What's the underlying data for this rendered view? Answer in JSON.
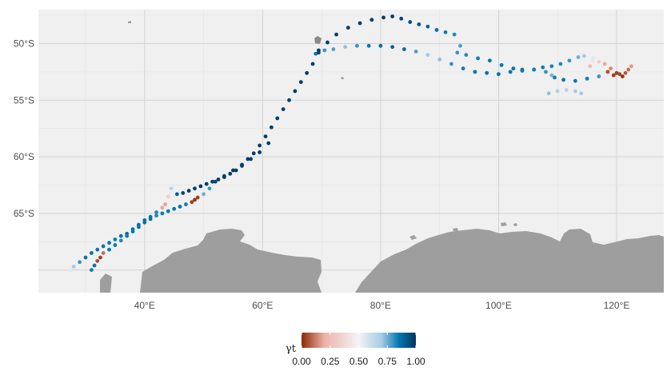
{
  "chart_data": {
    "type": "scatter",
    "title": "",
    "xlabel": "",
    "ylabel": "",
    "xlim": [
      22,
      128
    ],
    "ylim": [
      -72,
      -47
    ],
    "x_ticks": [
      "40°E",
      "60°E",
      "80°E",
      "100°E",
      "120°E"
    ],
    "y_ticks": [
      "50°S",
      "55°S",
      "60°S",
      "65°S"
    ],
    "x_tick_values": [
      40,
      60,
      80,
      100,
      120
    ],
    "y_tick_values": [
      -50,
      -55,
      -60,
      -65
    ],
    "grid": true,
    "legend_position": "bottom",
    "legend": {
      "title": "γt",
      "labels": [
        "0.00",
        "0.25",
        "0.50",
        "0.75",
        "1.00"
      ],
      "values": [
        0,
        0.25,
        0.5,
        0.75,
        1.0
      ],
      "colors": [
        "#8c2a04",
        "#ecb3a8",
        "#f4f4f4",
        "#a6cbe4",
        "#0079b1",
        "#00345c"
      ]
    },
    "colors": {
      "panel_background": "#f0f0f0",
      "grid": "#d9d9d9",
      "land": "#9e9e9e"
    },
    "series": [
      {
        "lon": [
          69.5,
          71,
          72.5,
          74.5,
          76.5,
          78.5,
          80.5,
          82,
          83.5,
          85,
          86.5,
          88,
          89.5,
          91,
          92.5,
          93.5,
          93,
          94.5,
          96.5,
          98.5,
          100.5,
          102.5,
          104,
          106,
          107.5,
          109,
          110.5,
          112,
          113.5,
          114.5
        ],
        "lat": [
          -50.6,
          -49.9,
          -49.2,
          -48.6,
          -48.2,
          -47.9,
          -47.7,
          -47.6,
          -47.8,
          -48.1,
          -48.3,
          -48.5,
          -48.8,
          -49.0,
          -49.2,
          -50.2,
          -50.8,
          -51.0,
          -51.3,
          -51.5,
          -51.9,
          -52.2,
          -52.3,
          -52.3,
          -52.1,
          -52.0,
          -51.8,
          -51.5,
          -51.2,
          -51.1
        ],
        "gamma": [
          0.98,
          0.98,
          0.98,
          0.98,
          0.98,
          0.98,
          0.98,
          0.98,
          0.96,
          0.94,
          0.93,
          0.9,
          0.88,
          0.84,
          0.82,
          0.78,
          0.8,
          0.82,
          0.84,
          0.86,
          0.85,
          0.86,
          0.86,
          0.85,
          0.84,
          0.83,
          0.82,
          0.8,
          0.75,
          0.7
        ]
      },
      {
        "lon": [
          69,
          70.5,
          72,
          74,
          76,
          78,
          80,
          82,
          84,
          86,
          88,
          90,
          92,
          94,
          96,
          98,
          100,
          102,
          104,
          106,
          108,
          109,
          109.5,
          111,
          113,
          115,
          117
        ],
        "lat": [
          -50.9,
          -50.6,
          -50.5,
          -50.3,
          -50.2,
          -50.2,
          -50.2,
          -50.3,
          -50.5,
          -50.7,
          -51.0,
          -51.4,
          -51.8,
          -52.2,
          -52.5,
          -52.6,
          -52.7,
          -52.5,
          -52.4,
          -52.3,
          -52.5,
          -52.8,
          -53.0,
          -53.2,
          -53.3,
          -53.1,
          -52.9
        ],
        "gamma": [
          0.85,
          0.8,
          0.78,
          0.72,
          0.8,
          0.85,
          0.88,
          0.9,
          0.88,
          0.78,
          0.7,
          0.72,
          0.8,
          0.84,
          0.86,
          0.86,
          0.87,
          0.86,
          0.85,
          0.84,
          0.8,
          0.74,
          0.84,
          0.86,
          0.85,
          0.84,
          0.8
        ]
      },
      {
        "lon": [
          108.5,
          110,
          111.5,
          113,
          114,
          116,
          118,
          119,
          120,
          121,
          122,
          118.5,
          119.5,
          120.5,
          121.5,
          122.5,
          116,
          117,
          115.5
        ],
        "lat": [
          -54.4,
          -54.2,
          -54.1,
          -54.2,
          -54.4,
          -51.5,
          -51.8,
          -52.2,
          -52.6,
          -52.9,
          -52.3,
          -52.5,
          -52.8,
          -52.7,
          -52.6,
          -52.0,
          -51.3,
          -51.6,
          -52.0
        ],
        "gamma": [
          0.72,
          0.68,
          0.66,
          0.7,
          0.7,
          0.45,
          0.3,
          0.2,
          0.05,
          0.02,
          0.15,
          0.08,
          0.04,
          0.06,
          0.1,
          0.25,
          0.55,
          0.4,
          0.35
        ]
      },
      {
        "lon": [
          69.5,
          68.5,
          67.5,
          66.5,
          65.5,
          64.5,
          63.5,
          62.5,
          61.5,
          60.5,
          59.5,
          58.5,
          57.5,
          56.5,
          55.5,
          54.5,
          53.5,
          52.5,
          51.5,
          50.5,
          49.5,
          48.5,
          47.5,
          46.5,
          45.5,
          44.5,
          44,
          43.5,
          43,
          42,
          41,
          40,
          39,
          38,
          37,
          36,
          35,
          34,
          33,
          32,
          31,
          30,
          29,
          28,
          27.5
        ],
        "lat": [
          -50.8,
          -51.8,
          -52.6,
          -53.4,
          -54.2,
          -55.0,
          -55.8,
          -56.6,
          -57.4,
          -58.2,
          -59.0,
          -59.7,
          -60.2,
          -60.8,
          -61.2,
          -61.5,
          -61.8,
          -62.0,
          -62.2,
          -62.4,
          -62.6,
          -62.8,
          -63.0,
          -63.2,
          -63.3,
          -62.8,
          -63.5,
          -64.2,
          -64.5,
          -64.9,
          -65.3,
          -65.6,
          -66.0,
          -66.4,
          -66.8,
          -67.0,
          -67.3,
          -67.6,
          -67.9,
          -68.2,
          -68.5,
          -68.9,
          -69.3,
          -69.7,
          -70.0
        ],
        "gamma": [
          0.98,
          0.98,
          0.98,
          0.98,
          0.98,
          0.98,
          0.98,
          0.98,
          0.98,
          0.98,
          0.98,
          0.98,
          0.98,
          0.98,
          0.98,
          0.98,
          0.98,
          0.98,
          0.98,
          0.98,
          0.98,
          0.98,
          0.98,
          0.96,
          0.9,
          0.65,
          0.4,
          0.28,
          0.3,
          0.82,
          0.85,
          0.86,
          0.86,
          0.86,
          0.88,
          0.86,
          0.84,
          0.85,
          0.86,
          0.86,
          0.86,
          0.86,
          0.8,
          0.7,
          0.55
        ]
      },
      {
        "lon": [
          61,
          59.5,
          58,
          56.5,
          55,
          53.5,
          52,
          51,
          50,
          49,
          48.5,
          48,
          47,
          46,
          45,
          44,
          43,
          42,
          41,
          40,
          39,
          38,
          37,
          36,
          35,
          34,
          33,
          32.5,
          32,
          31.5,
          31
        ],
        "lat": [
          -58.8,
          -59.6,
          -60.2,
          -60.7,
          -61.2,
          -61.7,
          -62.2,
          -62.8,
          -63.3,
          -63.6,
          -63.8,
          -64.0,
          -64.2,
          -64.4,
          -64.6,
          -64.8,
          -65.0,
          -65.2,
          -65.5,
          -65.8,
          -66.2,
          -66.6,
          -67.0,
          -67.4,
          -67.8,
          -68.2,
          -68.5,
          -68.9,
          -69.2,
          -69.6,
          -70.0
        ],
        "gamma": [
          0.98,
          0.98,
          0.98,
          0.98,
          0.98,
          0.98,
          0.96,
          0.8,
          0.75,
          0.05,
          0.02,
          0.04,
          0.84,
          0.86,
          0.86,
          0.85,
          0.84,
          0.82,
          0.86,
          0.86,
          0.86,
          0.85,
          0.84,
          0.82,
          0.85,
          0.85,
          0.15,
          0.05,
          0.08,
          0.86,
          0.84
        ]
      }
    ]
  }
}
